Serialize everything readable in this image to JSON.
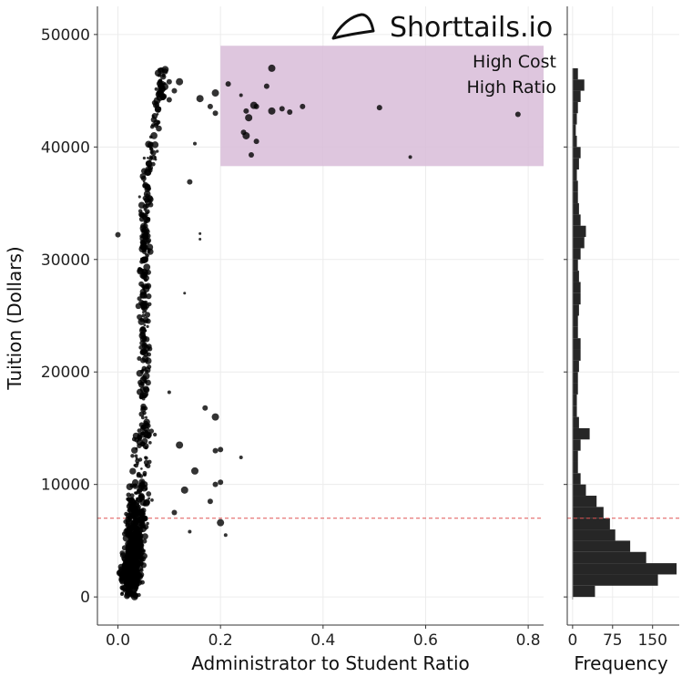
{
  "brand": {
    "name": "Shorttails.io",
    "logo_icon": "fish-tail-icon"
  },
  "colors": {
    "highlight": "#d8bcd8",
    "points": "#000000",
    "bars": "#262626",
    "reference_line": "#e05555"
  },
  "chart_data": [
    {
      "type": "scatter",
      "title": "",
      "xlabel": "Administrator to Student Ratio",
      "ylabel": "Tuition (Dollars)",
      "xlim": [
        -0.04,
        0.83
      ],
      "ylim": [
        -2500,
        52500
      ],
      "xticks": [
        0.0,
        0.2,
        0.4,
        0.6,
        0.8
      ],
      "xtick_labels": [
        "0.0",
        "0.2",
        "0.4",
        "0.6",
        "0.8"
      ],
      "yticks": [
        0,
        10000,
        20000,
        30000,
        40000,
        50000
      ],
      "ytick_labels": [
        "0",
        "10000",
        "20000",
        "30000",
        "40000",
        "50000"
      ],
      "grid": true,
      "reference_line": {
        "axis": "y",
        "value": 7000,
        "style": "dashed"
      },
      "highlight_region": {
        "x": [
          0.2,
          0.83
        ],
        "y": [
          38300,
          49000
        ],
        "label_line1": "High Cost",
        "label_line2": "High Ratio"
      },
      "series": [
        {
          "values": [
            {
              "x": 0.215,
              "y": 45600,
              "r": 3
            },
            {
              "x": 0.24,
              "y": 44600,
              "r": 2
            },
            {
              "x": 0.25,
              "y": 43200,
              "r": 3
            },
            {
              "x": 0.265,
              "y": 43700,
              "r": 4
            },
            {
              "x": 0.27,
              "y": 43600,
              "r": 3
            },
            {
              "x": 0.255,
              "y": 42600,
              "r": 4
            },
            {
              "x": 0.245,
              "y": 41300,
              "r": 3
            },
            {
              "x": 0.25,
              "y": 41000,
              "r": 4
            },
            {
              "x": 0.27,
              "y": 40500,
              "r": 3
            },
            {
              "x": 0.26,
              "y": 39300,
              "r": 3
            },
            {
              "x": 0.29,
              "y": 45400,
              "r": 3
            },
            {
              "x": 0.3,
              "y": 47000,
              "r": 4
            },
            {
              "x": 0.3,
              "y": 43200,
              "r": 4
            },
            {
              "x": 0.32,
              "y": 43400,
              "r": 3
            },
            {
              "x": 0.335,
              "y": 43100,
              "r": 3
            },
            {
              "x": 0.36,
              "y": 43600,
              "r": 3
            },
            {
              "x": 0.51,
              "y": 43500,
              "r": 3
            },
            {
              "x": 0.57,
              "y": 39100,
              "r": 2
            },
            {
              "x": 0.78,
              "y": 42900,
              "r": 3
            },
            {
              "x": 0.16,
              "y": 44300,
              "r": 4
            },
            {
              "x": 0.18,
              "y": 43600,
              "r": 3
            },
            {
              "x": 0.19,
              "y": 44800,
              "r": 4
            },
            {
              "x": 0.19,
              "y": 43000,
              "r": 3
            },
            {
              "x": 0.15,
              "y": 40300,
              "r": 2
            },
            {
              "x": 0.14,
              "y": 36900,
              "r": 3
            },
            {
              "x": 0.16,
              "y": 32300,
              "r": 1.5
            },
            {
              "x": 0.16,
              "y": 31800,
              "r": 1.5
            },
            {
              "x": 0.0,
              "y": 32200,
              "r": 3
            },
            {
              "x": 0.13,
              "y": 27000,
              "r": 1.5
            },
            {
              "x": 0.17,
              "y": 16800,
              "r": 3
            },
            {
              "x": 0.19,
              "y": 16000,
              "r": 4
            },
            {
              "x": 0.19,
              "y": 13000,
              "r": 3
            },
            {
              "x": 0.2,
              "y": 13100,
              "r": 3
            },
            {
              "x": 0.24,
              "y": 12400,
              "r": 2
            },
            {
              "x": 0.19,
              "y": 10000,
              "r": 3
            },
            {
              "x": 0.2,
              "y": 10200,
              "r": 3
            },
            {
              "x": 0.2,
              "y": 6600,
              "r": 4
            },
            {
              "x": 0.21,
              "y": 5500,
              "r": 2
            },
            {
              "x": 0.18,
              "y": 8500,
              "r": 3
            },
            {
              "x": 0.15,
              "y": 11200,
              "r": 4
            },
            {
              "x": 0.12,
              "y": 13500,
              "r": 4
            },
            {
              "x": 0.13,
              "y": 9500,
              "r": 4
            },
            {
              "x": 0.11,
              "y": 7500,
              "r": 3
            },
            {
              "x": 0.14,
              "y": 5800,
              "r": 2
            },
            {
              "x": 0.05,
              "y": 15100,
              "r": 3
            },
            {
              "x": 0.1,
              "y": 18200,
              "r": 2
            },
            {
              "x": 0.08,
              "y": 46900,
              "r": 1.5
            },
            {
              "x": 0.1,
              "y": 45800,
              "r": 3
            },
            {
              "x": 0.11,
              "y": 45000,
              "r": 3
            },
            {
              "x": 0.09,
              "y": 44500,
              "r": 3
            },
            {
              "x": 0.12,
              "y": 45800,
              "r": 4
            },
            {
              "x": 0.1,
              "y": 44200,
              "r": 3
            }
          ]
        }
      ]
    },
    {
      "type": "bar",
      "orientation": "horizontal",
      "title": "",
      "xlabel": "Frequency",
      "xlim": [
        -10,
        200
      ],
      "xticks": [
        0,
        75,
        150
      ],
      "xtick_labels": [
        "0",
        "75",
        "150"
      ],
      "bin_width": 1000,
      "bin_centers": [
        500,
        1500,
        2500,
        3500,
        4500,
        5500,
        6500,
        7500,
        8500,
        9500,
        10500,
        11500,
        12500,
        13500,
        14500,
        15500,
        16500,
        17500,
        18500,
        19500,
        20500,
        21500,
        22500,
        23500,
        24500,
        25500,
        26500,
        27500,
        28500,
        29500,
        30500,
        31500,
        32500,
        33500,
        34500,
        35500,
        36500,
        37500,
        38500,
        39500,
        40500,
        41500,
        42500,
        43500,
        44500,
        45500,
        46500
      ],
      "values": [
        42,
        160,
        195,
        138,
        108,
        80,
        70,
        58,
        45,
        25,
        15,
        10,
        10,
        15,
        32,
        12,
        8,
        8,
        10,
        10,
        12,
        15,
        15,
        10,
        10,
        12,
        15,
        15,
        12,
        10,
        15,
        22,
        25,
        15,
        12,
        10,
        10,
        8,
        12,
        15,
        8,
        6,
        8,
        10,
        15,
        22,
        10
      ]
    }
  ]
}
